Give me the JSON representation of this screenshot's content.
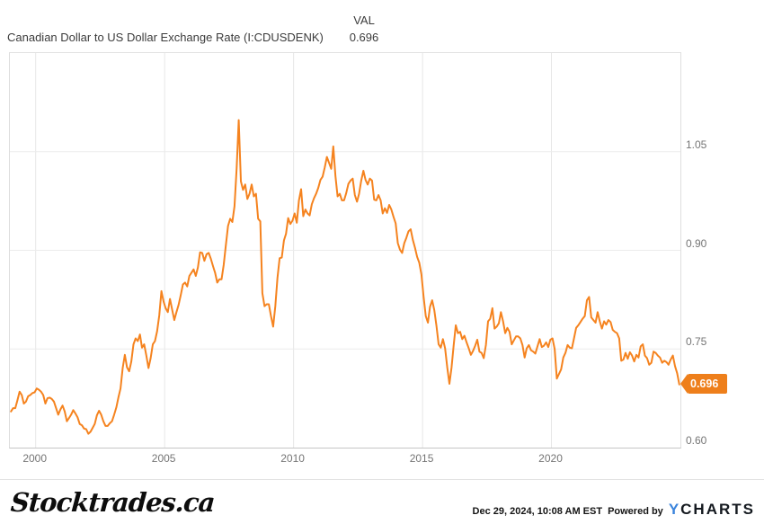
{
  "header": {
    "title": "Canadian Dollar to US Dollar Exchange Rate (I:CDUSDENK)",
    "val_label": "VAL",
    "val_value": "0.696"
  },
  "chart_data": {
    "type": "line",
    "title": "Canadian Dollar to US Dollar Exchange Rate",
    "series_name": "I:CDUSDENK",
    "frequency": "monthly",
    "start_year": 1999,
    "xlim": [
      1999,
      2025
    ],
    "ylim": [
      0.6,
      1.2
    ],
    "x_ticks": [
      2000,
      2005,
      2010,
      2015,
      2020
    ],
    "x_tick_labels": [
      "2000",
      "2005",
      "2010",
      "2015",
      "2020"
    ],
    "y_ticks": [
      [
        0.6,
        "0.60"
      ],
      [
        0.75,
        "0.75"
      ],
      [
        0.9,
        "0.90"
      ],
      [
        1.05,
        "1.05"
      ]
    ],
    "grid": true,
    "legend": false,
    "line_color": "#F5831F",
    "last_value": 0.696,
    "last_value_label": "0.696",
    "values": [
      0.655,
      0.66,
      0.66,
      0.672,
      0.685,
      0.68,
      0.667,
      0.67,
      0.678,
      0.68,
      0.683,
      0.684,
      0.69,
      0.688,
      0.685,
      0.68,
      0.667,
      0.675,
      0.676,
      0.674,
      0.67,
      0.66,
      0.65,
      0.658,
      0.664,
      0.655,
      0.64,
      0.645,
      0.65,
      0.657,
      0.652,
      0.646,
      0.636,
      0.634,
      0.629,
      0.628,
      0.621,
      0.624,
      0.63,
      0.636,
      0.649,
      0.656,
      0.65,
      0.64,
      0.633,
      0.633,
      0.637,
      0.64,
      0.65,
      0.661,
      0.676,
      0.69,
      0.721,
      0.741,
      0.722,
      0.716,
      0.731,
      0.757,
      0.766,
      0.762,
      0.772,
      0.752,
      0.757,
      0.74,
      0.721,
      0.736,
      0.757,
      0.762,
      0.777,
      0.801,
      0.838,
      0.822,
      0.812,
      0.806,
      0.826,
      0.81,
      0.794,
      0.806,
      0.817,
      0.832,
      0.848,
      0.851,
      0.845,
      0.861,
      0.866,
      0.871,
      0.861,
      0.874,
      0.897,
      0.896,
      0.884,
      0.894,
      0.896,
      0.887,
      0.876,
      0.866,
      0.851,
      0.856,
      0.856,
      0.878,
      0.908,
      0.937,
      0.948,
      0.943,
      0.967,
      1.025,
      1.098,
      1.005,
      0.992,
      1.0,
      0.978,
      0.986,
      1.0,
      0.982,
      0.986,
      0.948,
      0.944,
      0.835,
      0.815,
      0.818,
      0.818,
      0.8,
      0.784,
      0.815,
      0.858,
      0.888,
      0.889,
      0.915,
      0.925,
      0.949,
      0.94,
      0.945,
      0.956,
      0.942,
      0.976,
      0.993,
      0.952,
      0.962,
      0.956,
      0.953,
      0.97,
      0.979,
      0.986,
      0.995,
      1.007,
      1.012,
      1.026,
      1.042,
      1.033,
      1.024,
      1.058,
      1.013,
      0.982,
      0.986,
      0.976,
      0.976,
      0.987,
      1.001,
      1.006,
      1.009,
      0.984,
      0.974,
      0.986,
      1.006,
      1.021,
      1.007,
      1.0,
      1.009,
      1.006,
      0.977,
      0.976,
      0.984,
      0.976,
      0.956,
      0.964,
      0.957,
      0.969,
      0.962,
      0.951,
      0.941,
      0.911,
      0.901,
      0.896,
      0.911,
      0.919,
      0.929,
      0.932,
      0.916,
      0.904,
      0.89,
      0.881,
      0.863,
      0.829,
      0.8,
      0.79,
      0.814,
      0.824,
      0.809,
      0.785,
      0.757,
      0.752,
      0.765,
      0.751,
      0.722,
      0.697,
      0.722,
      0.755,
      0.786,
      0.774,
      0.776,
      0.765,
      0.77,
      0.76,
      0.751,
      0.741,
      0.747,
      0.755,
      0.764,
      0.746,
      0.744,
      0.736,
      0.756,
      0.792,
      0.796,
      0.812,
      0.781,
      0.784,
      0.789,
      0.806,
      0.792,
      0.774,
      0.782,
      0.776,
      0.757,
      0.763,
      0.769,
      0.769,
      0.766,
      0.756,
      0.737,
      0.751,
      0.756,
      0.748,
      0.746,
      0.743,
      0.754,
      0.765,
      0.753,
      0.755,
      0.76,
      0.753,
      0.764,
      0.766,
      0.75,
      0.705,
      0.712,
      0.719,
      0.737,
      0.744,
      0.756,
      0.752,
      0.751,
      0.766,
      0.782,
      0.786,
      0.791,
      0.796,
      0.8,
      0.824,
      0.829,
      0.798,
      0.794,
      0.79,
      0.806,
      0.792,
      0.781,
      0.792,
      0.787,
      0.794,
      0.791,
      0.779,
      0.776,
      0.774,
      0.766,
      0.732,
      0.734,
      0.744,
      0.735,
      0.745,
      0.74,
      0.731,
      0.741,
      0.737,
      0.754,
      0.757,
      0.74,
      0.736,
      0.726,
      0.729,
      0.746,
      0.744,
      0.74,
      0.737,
      0.729,
      0.732,
      0.73,
      0.726,
      0.734,
      0.74,
      0.724,
      0.713,
      0.696
    ]
  },
  "colors": {
    "line": "#F5831F",
    "badge": "#EE7F1B",
    "horizontal_grid": "#ececec",
    "vertical_grid": "#e7e7e7",
    "tick_label": "#757575",
    "ycharts_blue": "#3B84DC"
  },
  "footer": {
    "brand": "Stocktrades.ca",
    "timestamp": "Dec 29, 2024, 10:08 AM EST",
    "powered_by": "Powered by",
    "ycharts_y": "Y",
    "ycharts_rest": "CHARTS"
  }
}
